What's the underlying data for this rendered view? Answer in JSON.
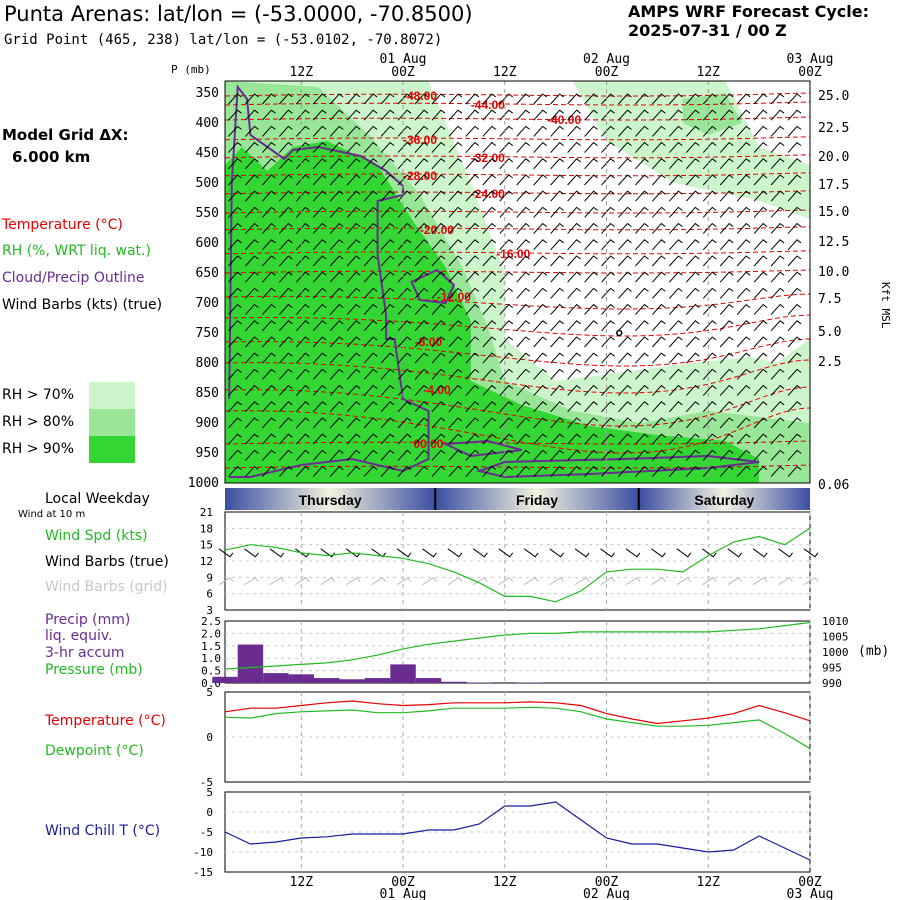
{
  "header": {
    "title": "Punta Arenas:  lat/lon = (-53.0000, -70.8500)",
    "grid_point": "Grid Point (465, 238) lat/lon = (-53.0102, -70.8072)",
    "cycle_line1": "AMPS WRF Forecast Cycle:",
    "cycle_line2": "2025-07-31 / 00  Z"
  },
  "left_legend": {
    "model_grid_line1": "Model Grid ΔX:",
    "model_grid_line2": "6.000 km",
    "temperature": "Temperature (°C)",
    "rh": "RH (%, WRT liq. wat.)",
    "cloud": "Cloud/Precip Outline",
    "wind_barbs": "Wind Barbs (kts) (true)",
    "rh70": "RH > 70%",
    "rh80": "RH > 80%",
    "rh90": "RH > 90%",
    "local_weekday": "Local Weekday",
    "wind_10m": "Wind at 10 m",
    "wind_spd": "Wind Spd (kts)",
    "wind_barbs_true": "Wind Barbs (true)",
    "wind_barbs_grid": "Wind Barbs (grid)",
    "precip1": "Precip (mm)",
    "precip2": "liq. equiv.",
    "precip3": "3-hr accum",
    "pressure": "Pressure (mb)",
    "temperature2": "Temperature (°C)",
    "dewpoint": "Dewpoint (°C)",
    "windchill": "Wind Chill T (°C)"
  },
  "colors": {
    "rh70": "#ccf5cc",
    "rh80": "#99e699",
    "rh90": "#33d633",
    "temperature": "#e60000",
    "cloud": "#6a2c91",
    "dewpoint": "#22bb22",
    "windchill": "#1a1aa0",
    "weekday_dark": "#3b4ea0",
    "weekday_light": "#f2f2e0"
  },
  "time_axis": {
    "top_ticks": [
      {
        "label": "12Z",
        "hour": 12
      },
      {
        "label": "00Z",
        "hour": 24,
        "date": "01 Aug"
      },
      {
        "label": "12Z",
        "hour": 36
      },
      {
        "label": "00Z",
        "hour": 48,
        "date": "02 Aug"
      },
      {
        "label": "12Z",
        "hour": 60
      },
      {
        "label": "00Z",
        "hour": 72,
        "date": "03 Aug"
      }
    ],
    "weekdays": [
      "Thursday",
      "Friday",
      "Saturday"
    ],
    "pressure_label": "P (mb)",
    "kft_label": "Kft MSL",
    "pressure_levels": [
      "350",
      "400",
      "450",
      "500",
      "550",
      "600",
      "650",
      "700",
      "750",
      "800",
      "850",
      "900",
      "950",
      "1000"
    ],
    "kft_levels": [
      "25.0",
      "22.5",
      "20.0",
      "17.5",
      "15.0",
      "12.5",
      "10.0",
      "7.5",
      "5.0",
      "2.5",
      "0.06"
    ]
  },
  "chart_data": [
    {
      "type": "heatmap",
      "name": "cross-section",
      "y_axis": "pressure (mb)",
      "ylim": [
        1000,
        330
      ],
      "xlim": [
        3,
        72
      ],
      "isotherm_labels": [
        {
          "text": "-48.00",
          "hour": 26,
          "p": 355
        },
        {
          "text": "-44.00",
          "hour": 34,
          "p": 370
        },
        {
          "text": "-40.00",
          "hour": 43,
          "p": 395
        },
        {
          "text": "-36.00",
          "hour": 26,
          "p": 428
        },
        {
          "text": "-32.00",
          "hour": 34,
          "p": 458
        },
        {
          "text": "-28.00",
          "hour": 26,
          "p": 488
        },
        {
          "text": "-24.00",
          "hour": 34,
          "p": 518
        },
        {
          "text": "-20.00",
          "hour": 28,
          "p": 578
        },
        {
          "text": "-16.00",
          "hour": 37,
          "p": 618
        },
        {
          "text": "-12.00",
          "hour": 30,
          "p": 690
        },
        {
          "text": "-8.00",
          "hour": 27,
          "p": 765
        },
        {
          "text": "-4.00",
          "hour": 28,
          "p": 845
        },
        {
          "text": "00.00",
          "hour": 27,
          "p": 935
        }
      ]
    },
    {
      "type": "line",
      "name": "wind speed 10 m",
      "ylabel": "kts",
      "y_ticks": [
        "21",
        "18",
        "15",
        "12",
        "9",
        "6",
        "3"
      ],
      "ylim": [
        3,
        21
      ],
      "x": [
        3,
        6,
        9,
        12,
        15,
        18,
        21,
        24,
        27,
        30,
        33,
        36,
        39,
        42,
        45,
        48,
        51,
        54,
        57,
        60,
        63,
        66,
        69,
        72
      ],
      "values": [
        14,
        15,
        14.5,
        13.5,
        13,
        13.5,
        13,
        12.5,
        11.5,
        10,
        8,
        5.5,
        5.5,
        4.5,
        6.5,
        10,
        10.5,
        10.5,
        10,
        13,
        15.5,
        16.5,
        15,
        18
      ]
    },
    {
      "type": "bar",
      "name": "precipitation 3-hr accum",
      "ylabel": "mm",
      "y_ticks": [
        "2.5",
        "2.0",
        "1.5",
        "1.0",
        "0.5",
        "0.0"
      ],
      "ylim": [
        0,
        2.5
      ],
      "x": [
        3,
        6,
        9,
        12,
        15,
        18,
        21,
        24,
        27,
        30,
        33,
        36,
        39,
        42,
        45,
        48,
        51,
        54,
        57,
        60,
        63,
        66,
        69,
        72
      ],
      "values": [
        0.25,
        1.55,
        0.4,
        0.35,
        0.2,
        0.15,
        0.2,
        0.75,
        0.2,
        0.05,
        0.02,
        0.0,
        0.02,
        0.0,
        0.0,
        0.0,
        0.0,
        0.0,
        0.0,
        0.0,
        0.0,
        0.0,
        0.0,
        0.0
      ]
    },
    {
      "type": "line",
      "name": "pressure",
      "ylabel": "mb",
      "y_ticks": [
        "1010",
        "1005",
        "1000",
        "995",
        "990"
      ],
      "ylim": [
        990,
        1010
      ],
      "x": [
        3,
        6,
        9,
        12,
        15,
        18,
        21,
        24,
        27,
        30,
        33,
        36,
        39,
        42,
        45,
        48,
        51,
        54,
        57,
        60,
        63,
        66,
        69,
        72
      ],
      "values": [
        994.5,
        995,
        995.5,
        996,
        996.5,
        997.5,
        999,
        1001,
        1002.5,
        1003.5,
        1004.5,
        1005.5,
        1006,
        1006,
        1006.5,
        1006.5,
        1006.5,
        1006.5,
        1006.5,
        1006.5,
        1007,
        1007.5,
        1008.5,
        1009.5
      ]
    },
    {
      "type": "line",
      "name": "temperature and dewpoint",
      "ylabel": "°C",
      "y_ticks": [
        "5",
        "0",
        "-5"
      ],
      "ylim": [
        -5,
        5
      ],
      "x": [
        3,
        6,
        9,
        12,
        15,
        18,
        21,
        24,
        27,
        30,
        33,
        36,
        39,
        42,
        45,
        48,
        51,
        54,
        57,
        60,
        63,
        66,
        69,
        72
      ],
      "series": [
        {
          "name": "Temperature",
          "values": [
            2.8,
            3.2,
            3.2,
            3.5,
            3.8,
            4.0,
            3.7,
            3.5,
            3.6,
            3.8,
            3.8,
            3.8,
            3.9,
            3.8,
            3.5,
            2.6,
            2.0,
            1.5,
            1.8,
            2.1,
            2.6,
            3.5,
            2.7,
            1.8
          ]
        },
        {
          "name": "Dewpoint",
          "values": [
            2.2,
            2.1,
            2.6,
            2.8,
            2.9,
            3.0,
            2.7,
            2.7,
            2.9,
            3.2,
            3.2,
            3.2,
            3.3,
            3.2,
            2.8,
            2.0,
            1.6,
            1.2,
            1.2,
            1.3,
            1.6,
            1.9,
            0.4,
            -1.3
          ]
        }
      ]
    },
    {
      "type": "line",
      "name": "wind chill",
      "ylabel": "°C",
      "y_ticks": [
        "5",
        "0",
        "-5",
        "-10",
        "-15"
      ],
      "ylim": [
        -15,
        5
      ],
      "x": [
        3,
        6,
        9,
        12,
        15,
        18,
        21,
        24,
        27,
        30,
        33,
        36,
        39,
        42,
        45,
        48,
        51,
        54,
        57,
        60,
        63,
        66,
        69,
        72
      ],
      "values": [
        -5,
        -8,
        -7.5,
        -6.5,
        -6.2,
        -5.5,
        -5.5,
        -5.5,
        -4.5,
        -4.5,
        -3,
        1.5,
        1.5,
        2.5,
        -2,
        -6.5,
        -8,
        -8,
        -9,
        -10,
        -9.5,
        -6,
        -9,
        -12
      ]
    }
  ]
}
